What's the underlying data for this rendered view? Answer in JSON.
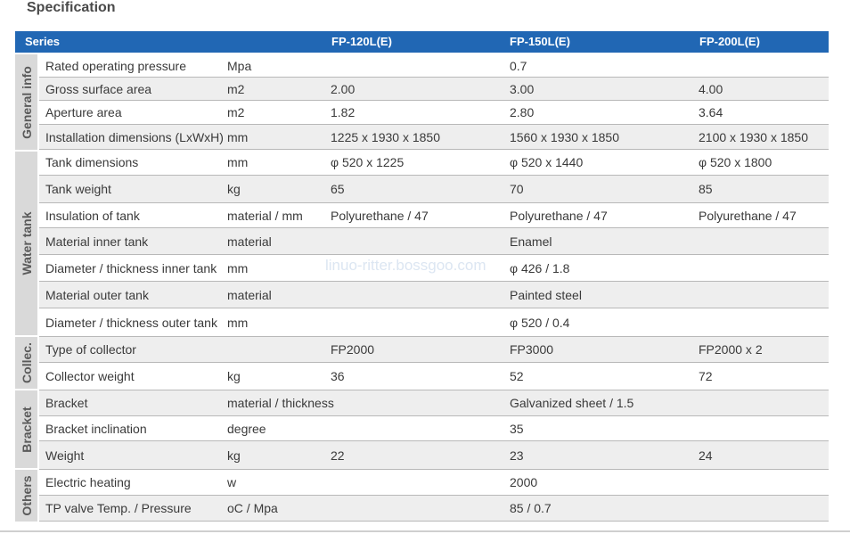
{
  "page": {
    "title": "Specification",
    "watermark": "linuo-ritter.bossgoo.com"
  },
  "header": {
    "series": "Series",
    "cols": [
      "FP-120L(E)",
      "FP-150L(E)",
      "FP-200L(E)"
    ]
  },
  "groups": [
    "General info",
    "Water tank",
    "Collec.",
    "Bracket",
    "Others"
  ],
  "rows": [
    {
      "name": "Rated operating pressure",
      "unit": "Mpa",
      "v1": "",
      "v2": "0.7",
      "v3": ""
    },
    {
      "name": "Gross surface area",
      "unit": "m2",
      "v1": "2.00",
      "v2": "3.00",
      "v3": "4.00"
    },
    {
      "name": "Aperture area",
      "unit": "m2",
      "v1": "1.82",
      "v2": "2.80",
      "v3": "3.64"
    },
    {
      "name": "Installation dimensions (LxWxH)",
      "unit": "mm",
      "v1": "1225 x 1930 x 1850",
      "v2": "1560 x 1930 x 1850",
      "v3": "2100 x 1930 x 1850"
    },
    {
      "name": "Tank dimensions",
      "unit": "mm",
      "v1": "φ 520 x 1225",
      "v2": "φ 520 x 1440",
      "v3": "φ 520 x 1800"
    },
    {
      "name": "Tank weight",
      "unit": "kg",
      "v1": "65",
      "v2": "70",
      "v3": "85"
    },
    {
      "name": "Insulation of tank",
      "unit": "material / mm",
      "v1": "Polyurethane / 47",
      "v2": "Polyurethane / 47",
      "v3": "Polyurethane / 47"
    },
    {
      "name": "Material inner tank",
      "unit": "material",
      "v1": "",
      "v2": "Enamel",
      "v3": ""
    },
    {
      "name": "Diameter / thickness inner tank",
      "unit": "mm",
      "v1": "",
      "v2": "φ 426 / 1.8",
      "v3": ""
    },
    {
      "name": "Material outer tank",
      "unit": "material",
      "v1": "",
      "v2": "Painted steel",
      "v3": ""
    },
    {
      "name": "Diameter / thickness outer tank",
      "unit": "mm",
      "v1": "",
      "v2": "φ 520 / 0.4",
      "v3": ""
    },
    {
      "name": "Type of collector",
      "unit": "",
      "v1": "FP2000",
      "v2": "FP3000",
      "v3": "FP2000 x 2"
    },
    {
      "name": "Collector weight",
      "unit": "kg",
      "v1": "36",
      "v2": "52",
      "v3": "72"
    },
    {
      "name": "Bracket",
      "unit": "material / thickness",
      "v1": "",
      "v2": "Galvanized sheet  / 1.5",
      "v3": ""
    },
    {
      "name": "Bracket inclination",
      "unit": "degree",
      "v1": "",
      "v2": "35",
      "v3": ""
    },
    {
      "name": "Weight",
      "unit": "kg",
      "v1": "22",
      "v2": "23",
      "v3": "24"
    },
    {
      "name": "Electric heating",
      "unit": "w",
      "v1": "",
      "v2": "2000",
      "v3": ""
    },
    {
      "name": "TP valve Temp. / Pressure",
      "unit": "oC / Mpa",
      "v1": "",
      "v2": "85 / 0.7",
      "v3": ""
    }
  ]
}
